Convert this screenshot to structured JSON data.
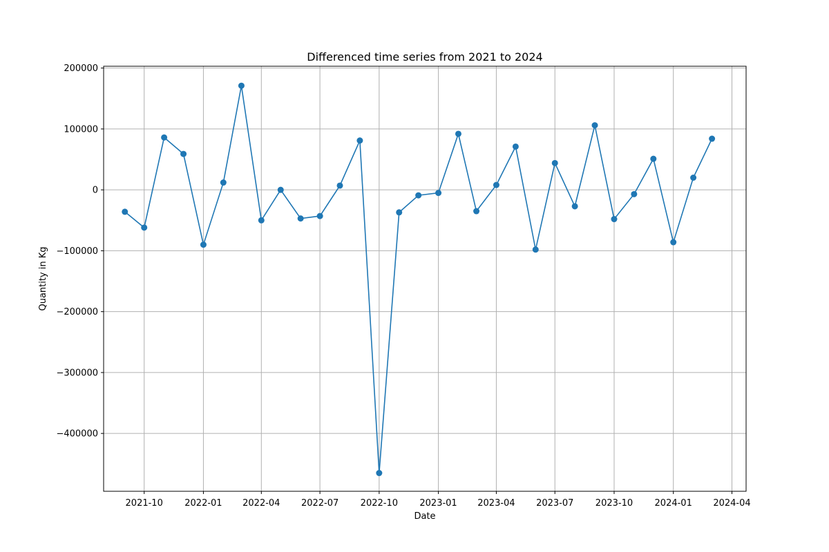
{
  "chart_data": {
    "type": "line",
    "title": "Differenced time series from 2021 to 2024",
    "xlabel": "Date",
    "ylabel": "Quantity in Kg",
    "grid": true,
    "color": "#1f77b4",
    "marker": "circle",
    "xlim": [
      "2021-07-30",
      "2024-04-23"
    ],
    "ylim": [
      -495000,
      203000
    ],
    "x_ticks": [
      {
        "date": "2021-10-01",
        "label": "2021-10"
      },
      {
        "date": "2022-01-01",
        "label": "2022-01"
      },
      {
        "date": "2022-04-01",
        "label": "2022-04"
      },
      {
        "date": "2022-07-01",
        "label": "2022-07"
      },
      {
        "date": "2022-10-01",
        "label": "2022-10"
      },
      {
        "date": "2023-01-01",
        "label": "2023-01"
      },
      {
        "date": "2023-04-01",
        "label": "2023-04"
      },
      {
        "date": "2023-07-01",
        "label": "2023-07"
      },
      {
        "date": "2023-10-01",
        "label": "2023-10"
      },
      {
        "date": "2024-01-01",
        "label": "2024-01"
      },
      {
        "date": "2024-04-01",
        "label": "2024-04"
      }
    ],
    "y_ticks": [
      {
        "value": 200000,
        "label": "200000"
      },
      {
        "value": 100000,
        "label": "100000"
      },
      {
        "value": 0,
        "label": "0"
      },
      {
        "value": -100000,
        "label": "−100000"
      },
      {
        "value": -200000,
        "label": "−200000"
      },
      {
        "value": -300000,
        "label": "−300000"
      },
      {
        "value": -400000,
        "label": "−400000"
      }
    ],
    "series": [
      {
        "points": [
          {
            "x": "2021-09-01",
            "y": -36000
          },
          {
            "x": "2021-10-01",
            "y": -62000
          },
          {
            "x": "2021-11-01",
            "y": 86000
          },
          {
            "x": "2021-12-01",
            "y": 59000
          },
          {
            "x": "2022-01-01",
            "y": -90000
          },
          {
            "x": "2022-02-01",
            "y": 12000
          },
          {
            "x": "2022-03-01",
            "y": 171000
          },
          {
            "x": "2022-04-01",
            "y": -50000
          },
          {
            "x": "2022-05-01",
            "y": 0
          },
          {
            "x": "2022-06-01",
            "y": -47000
          },
          {
            "x": "2022-07-01",
            "y": -43000
          },
          {
            "x": "2022-08-01",
            "y": 7000
          },
          {
            "x": "2022-09-01",
            "y": 81000
          },
          {
            "x": "2022-10-01",
            "y": -465000
          },
          {
            "x": "2022-11-01",
            "y": -37000
          },
          {
            "x": "2022-12-01",
            "y": -9000
          },
          {
            "x": "2023-01-01",
            "y": -5000
          },
          {
            "x": "2023-02-01",
            "y": 92000
          },
          {
            "x": "2023-03-01",
            "y": -35000
          },
          {
            "x": "2023-04-01",
            "y": 8000
          },
          {
            "x": "2023-05-01",
            "y": 71000
          },
          {
            "x": "2023-06-01",
            "y": -98000
          },
          {
            "x": "2023-07-01",
            "y": 44000
          },
          {
            "x": "2023-08-01",
            "y": -27000
          },
          {
            "x": "2023-09-01",
            "y": 106000
          },
          {
            "x": "2023-10-01",
            "y": -48000
          },
          {
            "x": "2023-11-01",
            "y": -7000
          },
          {
            "x": "2023-12-01",
            "y": 51000
          },
          {
            "x": "2024-01-01",
            "y": -86000
          },
          {
            "x": "2024-02-01",
            "y": 20000
          },
          {
            "x": "2024-03-01",
            "y": 84000
          }
        ]
      }
    ]
  }
}
